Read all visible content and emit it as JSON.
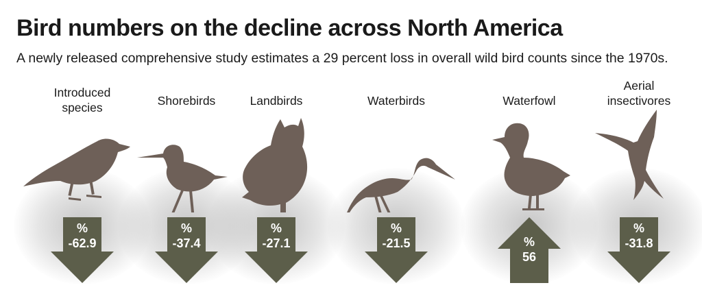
{
  "title": "Bird numbers on the decline across North America",
  "subtitle": "A newly released comprehensive study estimates a 29 percent loss in overall wild bird counts since the 1970s.",
  "colors": {
    "bird": "#6e6058",
    "arrow": "#5c5e4a",
    "text": "#1a1a1a"
  },
  "chart_data": {
    "type": "bar",
    "title": "Bird numbers on the decline across North America",
    "unit_label": "%",
    "categories": [
      "Introduced species",
      "Shorebirds",
      "Landbirds",
      "Waterbirds",
      "Waterfowl",
      "Aerial insectivores"
    ],
    "values": [
      -62.9,
      -37.4,
      -27.1,
      -21.5,
      56,
      -31.8
    ],
    "items": [
      {
        "label_lines": [
          "Introduced",
          "species"
        ],
        "value": "-62.9",
        "direction": "down",
        "icon": "starling-silhouette-icon"
      },
      {
        "label_lines": [
          "Shorebirds"
        ],
        "value": "-37.4",
        "direction": "down",
        "icon": "sandpiper-silhouette-icon"
      },
      {
        "label_lines": [
          "Landbirds"
        ],
        "value": "-27.1",
        "direction": "down",
        "icon": "owl-silhouette-icon"
      },
      {
        "label_lines": [
          "Waterbirds"
        ],
        "value": "-21.5",
        "direction": "down",
        "icon": "heron-silhouette-icon"
      },
      {
        "label_lines": [
          "Waterfowl"
        ],
        "value": "56",
        "direction": "up",
        "icon": "duck-silhouette-icon"
      },
      {
        "label_lines": [
          "Aerial",
          "insectivores"
        ],
        "value": "-31.8",
        "direction": "down",
        "icon": "swallow-silhouette-icon"
      }
    ]
  }
}
